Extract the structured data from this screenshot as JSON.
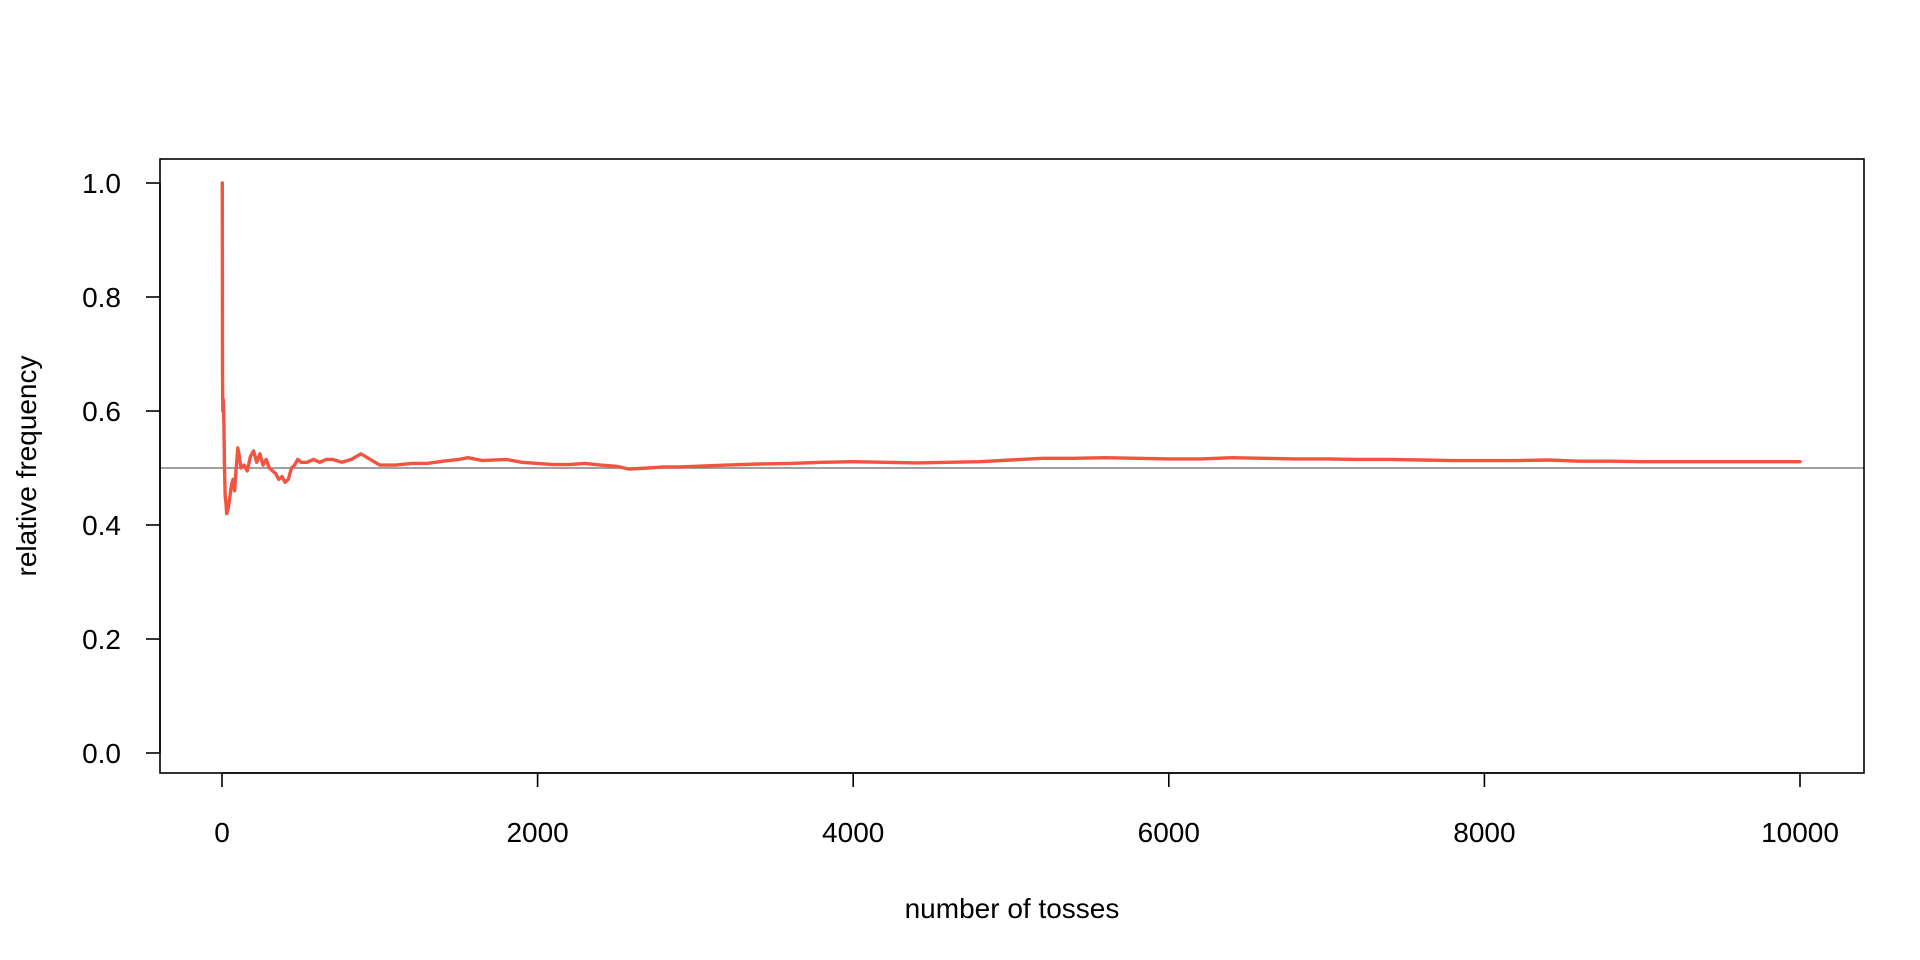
{
  "chart_data": {
    "type": "line",
    "title": "",
    "xlabel": "number of tosses",
    "ylabel": "relative frequency",
    "xlim": [
      0,
      10000
    ],
    "ylim": [
      0,
      1
    ],
    "xticks": [
      0,
      2000,
      4000,
      6000,
      8000,
      10000
    ],
    "xtick_labels": [
      "0",
      "2000",
      "4000",
      "6000",
      "8000",
      "10000"
    ],
    "yticks": [
      0.0,
      0.2,
      0.4,
      0.6,
      0.8,
      1.0
    ],
    "ytick_labels": [
      "0.0",
      "0.2",
      "0.4",
      "0.6",
      "0.8",
      "1.0"
    ],
    "grid": false,
    "legend": "none",
    "reference_line": {
      "y": 0.5,
      "color": "#808080"
    },
    "series": [
      {
        "color": "#F25440",
        "x": [
          1,
          2,
          3,
          5,
          8,
          12,
          16,
          20,
          25,
          30,
          40,
          50,
          60,
          70,
          80,
          90,
          100,
          110,
          120,
          140,
          160,
          180,
          200,
          220,
          240,
          260,
          280,
          300,
          320,
          340,
          360,
          380,
          400,
          420,
          440,
          460,
          480,
          500,
          540,
          580,
          620,
          660,
          700,
          760,
          820,
          880,
          940,
          1000,
          1100,
          1200,
          1300,
          1400,
          1500,
          1560,
          1650,
          1800,
          1900,
          2000,
          2100,
          2200,
          2300,
          2400,
          2500,
          2580,
          2700,
          2800,
          2900,
          3000,
          3200,
          3400,
          3600,
          3800,
          4000,
          4200,
          4400,
          4600,
          4800,
          5000,
          5200,
          5400,
          5600,
          5800,
          6000,
          6200,
          6400,
          6600,
          6800,
          7000,
          7200,
          7400,
          7600,
          7800,
          8000,
          8200,
          8400,
          8600,
          8800,
          9000,
          9200,
          9400,
          9600,
          9800,
          10000
        ],
        "y": [
          1.0,
          1.0,
          0.67,
          0.6,
          0.62,
          0.58,
          0.5,
          0.45,
          0.44,
          0.42,
          0.43,
          0.45,
          0.47,
          0.48,
          0.46,
          0.5,
          0.535,
          0.52,
          0.5,
          0.505,
          0.495,
          0.52,
          0.53,
          0.51,
          0.525,
          0.505,
          0.515,
          0.5,
          0.495,
          0.49,
          0.48,
          0.485,
          0.475,
          0.48,
          0.5,
          0.505,
          0.515,
          0.51,
          0.51,
          0.515,
          0.51,
          0.515,
          0.515,
          0.51,
          0.515,
          0.525,
          0.515,
          0.505,
          0.505,
          0.508,
          0.508,
          0.512,
          0.515,
          0.518,
          0.513,
          0.515,
          0.51,
          0.508,
          0.506,
          0.506,
          0.508,
          0.505,
          0.503,
          0.498,
          0.5,
          0.502,
          0.502,
          0.503,
          0.505,
          0.507,
          0.508,
          0.51,
          0.511,
          0.51,
          0.509,
          0.51,
          0.511,
          0.514,
          0.517,
          0.517,
          0.518,
          0.517,
          0.516,
          0.516,
          0.518,
          0.517,
          0.516,
          0.516,
          0.515,
          0.515,
          0.514,
          0.513,
          0.513,
          0.513,
          0.514,
          0.512,
          0.512,
          0.511,
          0.511,
          0.511,
          0.511,
          0.511,
          0.511
        ]
      }
    ]
  }
}
